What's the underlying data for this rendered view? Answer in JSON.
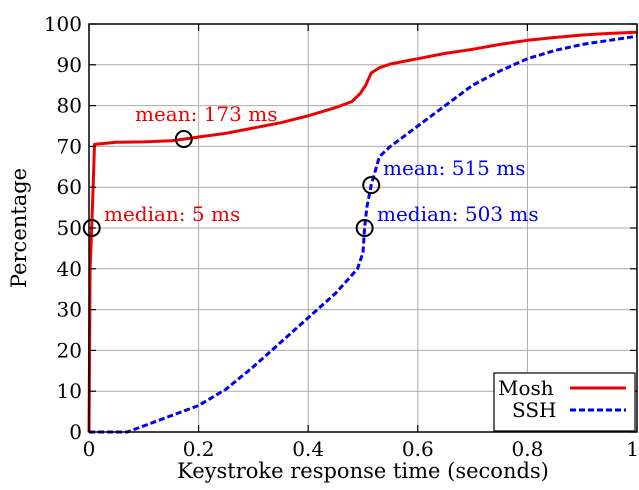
{
  "chart_data": {
    "type": "line",
    "title": "",
    "xlabel": "Keystroke response time (seconds)",
    "ylabel": "Percentage",
    "xlim": [
      0,
      1
    ],
    "ylim": [
      0,
      100
    ],
    "xticks": [
      "0",
      "0.2",
      "0.4",
      "0.6",
      "0.8",
      "1"
    ],
    "yticks": [
      "0",
      "10",
      "20",
      "30",
      "40",
      "50",
      "60",
      "70",
      "80",
      "90",
      "100"
    ],
    "grid": true,
    "legend_position": "bottom-right",
    "series": [
      {
        "name": "Mosh",
        "color": "#ee0000",
        "style": "solid",
        "points": [
          [
            0,
            0
          ],
          [
            0.002,
            40
          ],
          [
            0.005,
            50
          ],
          [
            0.008,
            62
          ],
          [
            0.01,
            70.5
          ],
          [
            0.05,
            71
          ],
          [
            0.1,
            71.1
          ],
          [
            0.15,
            71.4
          ],
          [
            0.173,
            71.8
          ],
          [
            0.2,
            72.3
          ],
          [
            0.25,
            73.2
          ],
          [
            0.3,
            74.5
          ],
          [
            0.35,
            75.8
          ],
          [
            0.4,
            77.5
          ],
          [
            0.45,
            79.5
          ],
          [
            0.48,
            81
          ],
          [
            0.495,
            83
          ],
          [
            0.505,
            85
          ],
          [
            0.515,
            88
          ],
          [
            0.53,
            89.3
          ],
          [
            0.55,
            90.2
          ],
          [
            0.6,
            91.5
          ],
          [
            0.65,
            92.8
          ],
          [
            0.7,
            93.8
          ],
          [
            0.75,
            95
          ],
          [
            0.8,
            96
          ],
          [
            0.85,
            96.7
          ],
          [
            0.9,
            97.3
          ],
          [
            0.95,
            97.7
          ],
          [
            1,
            98
          ]
        ]
      },
      {
        "name": "SSH",
        "color": "#0000ee",
        "style": "dashed",
        "points": [
          [
            0,
            0
          ],
          [
            0.07,
            0
          ],
          [
            0.1,
            1.5
          ],
          [
            0.15,
            4
          ],
          [
            0.2,
            6.5
          ],
          [
            0.25,
            10.5
          ],
          [
            0.3,
            16
          ],
          [
            0.35,
            22
          ],
          [
            0.4,
            28
          ],
          [
            0.45,
            34
          ],
          [
            0.49,
            40
          ],
          [
            0.5,
            44
          ],
          [
            0.503,
            50
          ],
          [
            0.507,
            55
          ],
          [
            0.515,
            60.5
          ],
          [
            0.53,
            67.5
          ],
          [
            0.55,
            70
          ],
          [
            0.6,
            75
          ],
          [
            0.65,
            80
          ],
          [
            0.7,
            85
          ],
          [
            0.75,
            88.5
          ],
          [
            0.8,
            91.5
          ],
          [
            0.85,
            93.5
          ],
          [
            0.9,
            95
          ],
          [
            0.95,
            96
          ],
          [
            1,
            97
          ]
        ]
      }
    ],
    "markers": [
      {
        "series": "Mosh",
        "x": 0.005,
        "y": 50
      },
      {
        "series": "Mosh",
        "x": 0.173,
        "y": 71.8
      },
      {
        "series": "SSH",
        "x": 0.503,
        "y": 50
      },
      {
        "series": "SSH",
        "x": 0.515,
        "y": 60.5
      }
    ],
    "annotations": [
      {
        "text": "mean: 173 ms",
        "color": "#ee0000"
      },
      {
        "text": "median: 5 ms",
        "color": "#ee0000"
      },
      {
        "text": "mean: 515 ms",
        "color": "#0000ee"
      },
      {
        "text": "median: 503 ms",
        "color": "#0000ee"
      }
    ]
  }
}
